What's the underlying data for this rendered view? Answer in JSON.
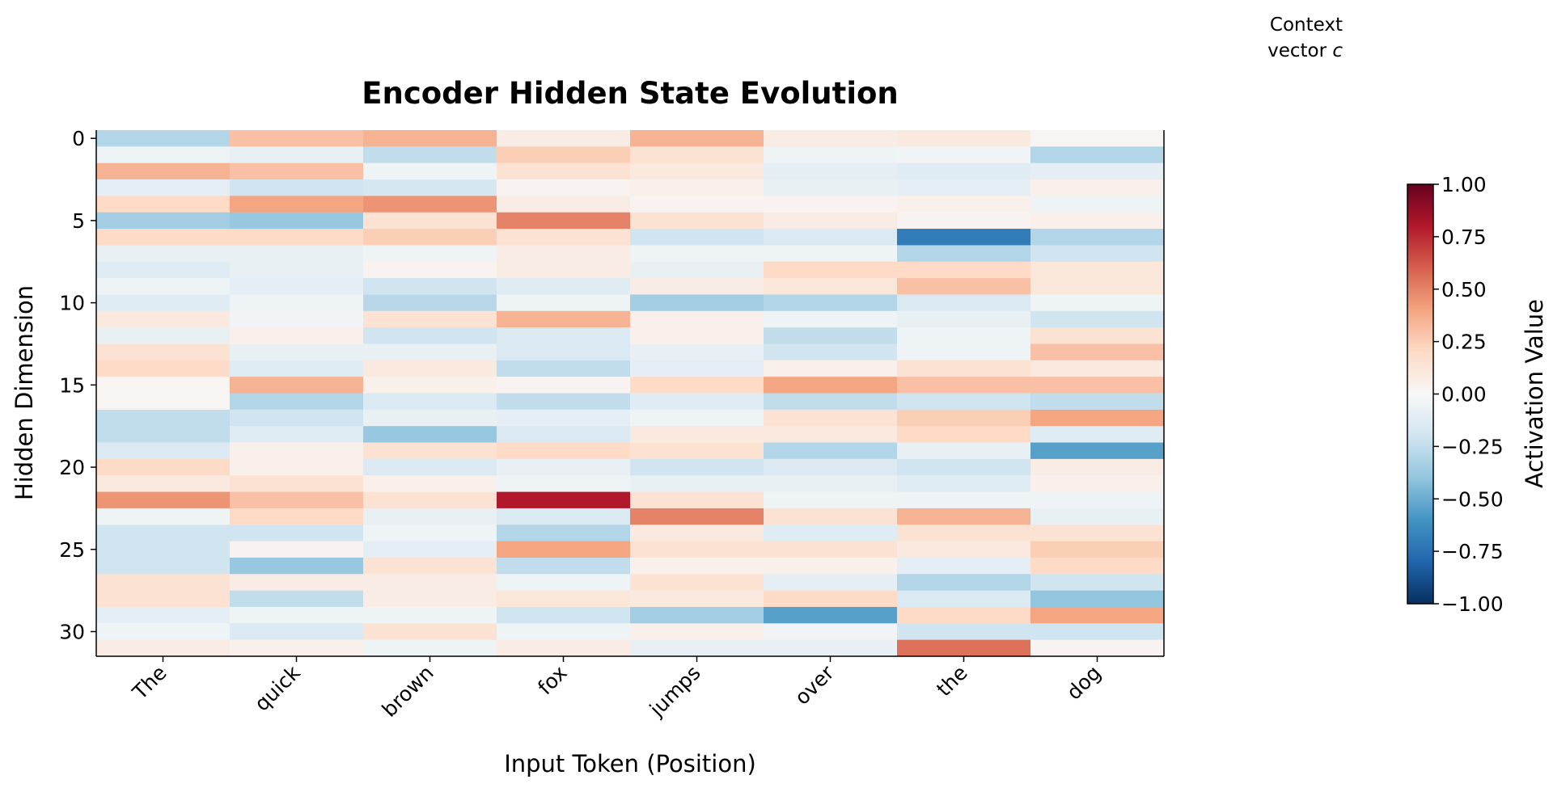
{
  "chart_data": {
    "type": "heatmap",
    "title": "Encoder Hidden State Evolution",
    "xlabel": "Input Token (Position)",
    "ylabel": "Hidden Dimension",
    "categories": [
      "The",
      "quick",
      "brown",
      "fox",
      "jumps",
      "over",
      "the",
      "dog"
    ],
    "ylim": [
      31.5,
      -0.5
    ],
    "yticks": [
      0,
      5,
      10,
      15,
      20,
      25,
      30
    ],
    "colormap": "RdBu_r",
    "clim": [
      -1,
      1
    ],
    "colorbar_label": "Activation Value",
    "cticks": [
      {
        "value": -1,
        "label": "−1.00"
      },
      {
        "value": -0.75,
        "label": "−0.75"
      },
      {
        "value": -0.5,
        "label": "−0.50"
      },
      {
        "value": -0.25,
        "label": "−0.25"
      },
      {
        "value": 0,
        "label": "0.00"
      },
      {
        "value": 0.25,
        "label": "0.25"
      },
      {
        "value": 0.5,
        "label": "0.50"
      },
      {
        "value": 0.75,
        "label": "0.75"
      },
      {
        "value": 1,
        "label": "1.00"
      }
    ],
    "annotation": {
      "line1": "Context",
      "line2": "vector",
      "symbol": "c"
    },
    "values": [
      [
        -0.3,
        0.3,
        0.35,
        0.08,
        0.35,
        0.08,
        0.1,
        0.02
      ],
      [
        -0.05,
        -0.08,
        -0.25,
        0.25,
        0.15,
        -0.05,
        -0.03,
        -0.3
      ],
      [
        0.35,
        0.3,
        -0.05,
        0.15,
        0.1,
        -0.1,
        -0.12,
        -0.1
      ],
      [
        -0.1,
        -0.2,
        -0.18,
        0.03,
        0.05,
        -0.08,
        -0.1,
        0.05
      ],
      [
        0.2,
        0.4,
        0.45,
        0.08,
        0.03,
        0.03,
        0.05,
        -0.05
      ],
      [
        -0.35,
        -0.38,
        0.15,
        0.5,
        0.15,
        0.08,
        0.03,
        0.05
      ],
      [
        0.2,
        0.2,
        0.25,
        0.15,
        -0.2,
        -0.15,
        -0.7,
        -0.3
      ],
      [
        -0.08,
        -0.08,
        -0.05,
        0.08,
        -0.05,
        -0.05,
        -0.3,
        -0.2
      ],
      [
        -0.12,
        -0.08,
        0.03,
        0.08,
        -0.08,
        0.2,
        0.2,
        0.12
      ],
      [
        -0.05,
        -0.1,
        -0.2,
        -0.12,
        0.08,
        0.12,
        0.3,
        0.12
      ],
      [
        -0.12,
        -0.05,
        -0.28,
        -0.05,
        -0.35,
        -0.3,
        -0.15,
        -0.05
      ],
      [
        0.1,
        -0.03,
        0.15,
        0.35,
        0.05,
        -0.05,
        -0.08,
        -0.2
      ],
      [
        -0.08,
        0.05,
        -0.2,
        -0.15,
        0.05,
        -0.25,
        -0.05,
        0.15
      ],
      [
        0.15,
        -0.08,
        -0.08,
        -0.15,
        -0.08,
        -0.2,
        -0.05,
        0.3
      ],
      [
        0.2,
        -0.12,
        0.1,
        -0.25,
        -0.1,
        0.05,
        0.15,
        0.1
      ],
      [
        0.02,
        0.35,
        0.05,
        0.03,
        0.2,
        0.4,
        0.3,
        0.3
      ],
      [
        0.02,
        -0.3,
        -0.15,
        -0.25,
        -0.12,
        -0.25,
        -0.2,
        -0.25
      ],
      [
        -0.25,
        -0.2,
        -0.08,
        -0.1,
        -0.05,
        0.15,
        0.25,
        0.4
      ],
      [
        -0.25,
        -0.12,
        -0.38,
        -0.15,
        0.1,
        0.1,
        0.2,
        -0.12
      ],
      [
        -0.15,
        0.05,
        0.15,
        0.2,
        0.15,
        -0.3,
        -0.08,
        -0.55
      ],
      [
        0.2,
        0.05,
        -0.15,
        -0.08,
        -0.2,
        -0.15,
        -0.2,
        0.08
      ],
      [
        0.1,
        0.15,
        0.05,
        -0.05,
        -0.08,
        -0.08,
        -0.12,
        0.05
      ],
      [
        0.45,
        0.3,
        0.15,
        0.8,
        0.15,
        -0.05,
        -0.05,
        -0.05
      ],
      [
        -0.05,
        0.2,
        -0.08,
        -0.15,
        0.5,
        0.15,
        0.35,
        -0.08
      ],
      [
        -0.2,
        -0.2,
        -0.05,
        -0.3,
        0.1,
        -0.12,
        0.15,
        0.15
      ],
      [
        -0.2,
        0.03,
        -0.1,
        0.4,
        0.15,
        0.15,
        0.1,
        0.25
      ],
      [
        -0.2,
        -0.38,
        0.15,
        -0.25,
        0.05,
        0.05,
        -0.1,
        0.2
      ],
      [
        0.15,
        0.08,
        0.08,
        -0.05,
        0.15,
        -0.1,
        -0.3,
        -0.2
      ],
      [
        0.15,
        -0.25,
        0.08,
        0.12,
        0.1,
        0.2,
        -0.15,
        -0.4
      ],
      [
        -0.1,
        -0.05,
        -0.05,
        -0.2,
        -0.35,
        -0.55,
        0.2,
        0.4
      ],
      [
        -0.05,
        -0.15,
        0.15,
        -0.05,
        0.05,
        -0.03,
        -0.2,
        -0.2
      ],
      [
        0.08,
        0.05,
        -0.05,
        0.08,
        -0.08,
        -0.08,
        0.55,
        0.03
      ]
    ]
  }
}
